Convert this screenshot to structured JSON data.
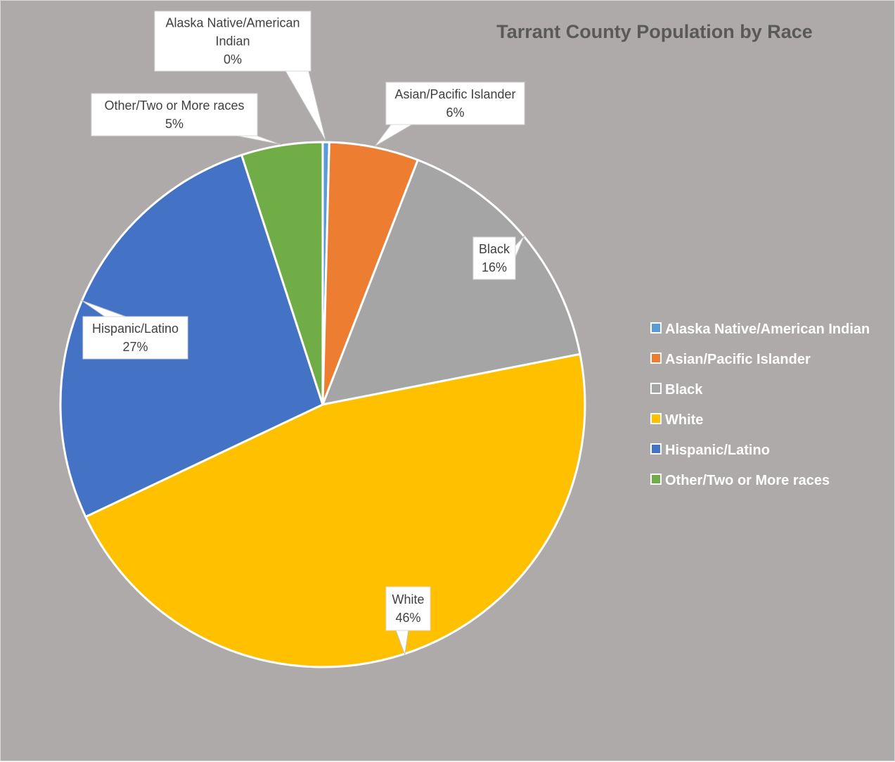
{
  "chart_data": {
    "type": "pie",
    "title": "Tarrant County Population by Race",
    "start_angle_deg": 0,
    "direction": "clockwise",
    "legend_position": "right",
    "slices": [
      {
        "label": "Alaska Native/American Indian",
        "value": 0.4,
        "display": "0%",
        "color": "#5b9bd5",
        "callout_lines": [
          "Alaska Native/American",
          "Indian",
          "0%"
        ]
      },
      {
        "label": "Asian/Pacific Islander",
        "value": 5.5,
        "display": "6%",
        "color": "#ed7d31",
        "callout_lines": [
          "Asian/Pacific Islander",
          "6%"
        ]
      },
      {
        "label": "Black",
        "value": 16,
        "display": "16%",
        "color": "#a5a5a5",
        "callout_lines": [
          "Black",
          "16%"
        ]
      },
      {
        "label": "White",
        "value": 46,
        "display": "46%",
        "color": "#ffc000",
        "callout_lines": [
          "White",
          "46%"
        ]
      },
      {
        "label": "Hispanic/Latino",
        "value": 27,
        "display": "27%",
        "color": "#4472c4",
        "callout_lines": [
          "Hispanic/Latino",
          "27%"
        ]
      },
      {
        "label": "Other/Two or More races",
        "value": 5,
        "display": "5%",
        "color": "#70ad47",
        "callout_lines": [
          "Other/Two or More races",
          "5%"
        ]
      }
    ]
  }
}
